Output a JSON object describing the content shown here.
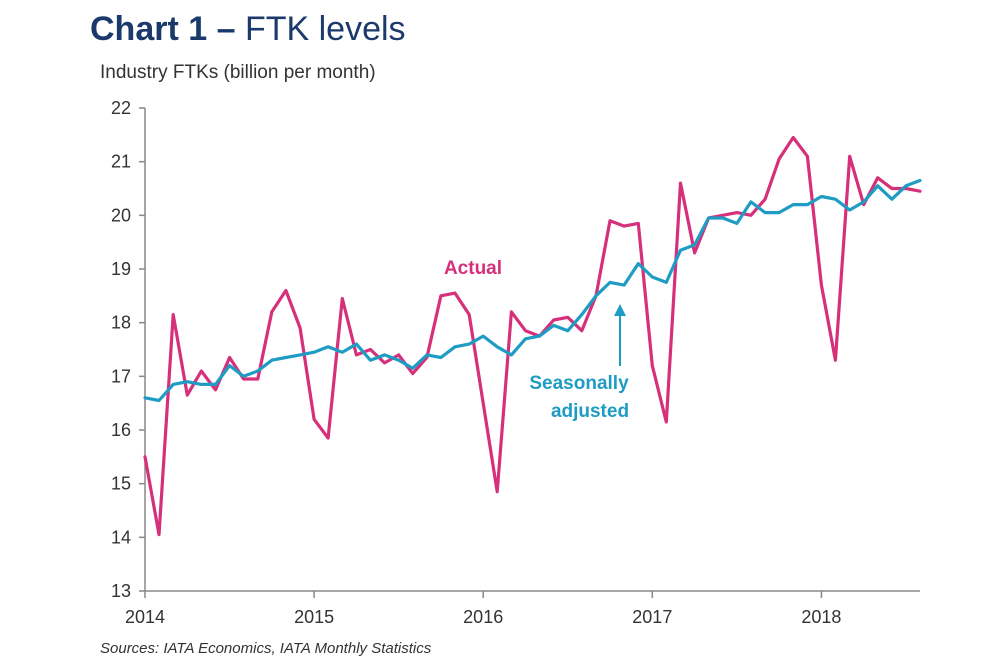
{
  "title": {
    "bold": "Chart 1 –",
    "rest": " FTK levels"
  },
  "ylabel": "Industry FTKs (billion per month)",
  "source": "Sources: IATA Economics, IATA Monthly Statistics",
  "chart_data": {
    "type": "line",
    "ylabel": "Industry FTKs (billion per month)",
    "ylim": [
      13,
      22
    ],
    "yticks": [
      13,
      14,
      15,
      16,
      17,
      18,
      19,
      20,
      21,
      22
    ],
    "xlim": [
      2014.0,
      2018.583
    ],
    "xticks": [
      2014,
      2015,
      2016,
      2017,
      2018
    ],
    "grid": false,
    "colors": {
      "actual": "#d6307a",
      "seasonally_adjusted": "#1f9cc4"
    },
    "annotations": [
      {
        "text": "Actual",
        "series": "Actual"
      },
      {
        "text": "Seasonally",
        "series": "Seasonally adjusted"
      },
      {
        "text": "adjusted",
        "series": "Seasonally adjusted"
      }
    ],
    "series": [
      {
        "name": "Actual",
        "x": [
          2014.0,
          2014.083,
          2014.167,
          2014.25,
          2014.333,
          2014.417,
          2014.5,
          2014.583,
          2014.667,
          2014.75,
          2014.833,
          2014.917,
          2015.0,
          2015.083,
          2015.167,
          2015.25,
          2015.333,
          2015.417,
          2015.5,
          2015.583,
          2015.667,
          2015.75,
          2015.833,
          2015.917,
          2016.0,
          2016.083,
          2016.167,
          2016.25,
          2016.333,
          2016.417,
          2016.5,
          2016.583,
          2016.667,
          2016.75,
          2016.833,
          2016.917,
          2017.0,
          2017.083,
          2017.167,
          2017.25,
          2017.333,
          2017.417,
          2017.5,
          2017.583,
          2017.667,
          2017.75,
          2017.833,
          2017.917,
          2018.0,
          2018.083,
          2018.167,
          2018.25,
          2018.333,
          2018.417,
          2018.5,
          2018.583
        ],
        "values": [
          15.5,
          14.05,
          18.15,
          16.65,
          17.1,
          16.75,
          17.35,
          16.95,
          16.95,
          18.2,
          18.6,
          17.9,
          16.2,
          15.85,
          18.45,
          17.4,
          17.5,
          17.25,
          17.4,
          17.05,
          17.35,
          18.5,
          18.55,
          18.15,
          16.5,
          14.85,
          18.2,
          17.85,
          17.75,
          18.05,
          18.1,
          17.85,
          18.5,
          19.9,
          19.8,
          19.85,
          17.2,
          16.15,
          20.6,
          19.3,
          19.95,
          20.0,
          20.05,
          20.0,
          20.3,
          21.05,
          21.45,
          21.1,
          18.7,
          17.3,
          21.1,
          20.2,
          20.7,
          20.5,
          20.5,
          20.45
        ]
      },
      {
        "name": "Seasonally adjusted",
        "x": [
          2014.0,
          2014.083,
          2014.167,
          2014.25,
          2014.333,
          2014.417,
          2014.5,
          2014.583,
          2014.667,
          2014.75,
          2014.833,
          2014.917,
          2015.0,
          2015.083,
          2015.167,
          2015.25,
          2015.333,
          2015.417,
          2015.5,
          2015.583,
          2015.667,
          2015.75,
          2015.833,
          2015.917,
          2016.0,
          2016.083,
          2016.167,
          2016.25,
          2016.333,
          2016.417,
          2016.5,
          2016.583,
          2016.667,
          2016.75,
          2016.833,
          2016.917,
          2017.0,
          2017.083,
          2017.167,
          2017.25,
          2017.333,
          2017.417,
          2017.5,
          2017.583,
          2017.667,
          2017.75,
          2017.833,
          2017.917,
          2018.0,
          2018.083,
          2018.167,
          2018.25,
          2018.333,
          2018.417,
          2018.5,
          2018.583
        ],
        "values": [
          16.6,
          16.55,
          16.85,
          16.9,
          16.85,
          16.85,
          17.2,
          17.0,
          17.1,
          17.3,
          17.35,
          17.4,
          17.45,
          17.55,
          17.45,
          17.6,
          17.3,
          17.4,
          17.3,
          17.15,
          17.4,
          17.35,
          17.55,
          17.6,
          17.75,
          17.55,
          17.4,
          17.7,
          17.75,
          17.95,
          17.85,
          18.15,
          18.5,
          18.75,
          18.7,
          19.1,
          18.85,
          18.75,
          19.35,
          19.45,
          19.95,
          19.95,
          19.85,
          20.25,
          20.05,
          20.05,
          20.2,
          20.2,
          20.35,
          20.3,
          20.1,
          20.25,
          20.55,
          20.3,
          20.55,
          20.65
        ]
      }
    ]
  }
}
